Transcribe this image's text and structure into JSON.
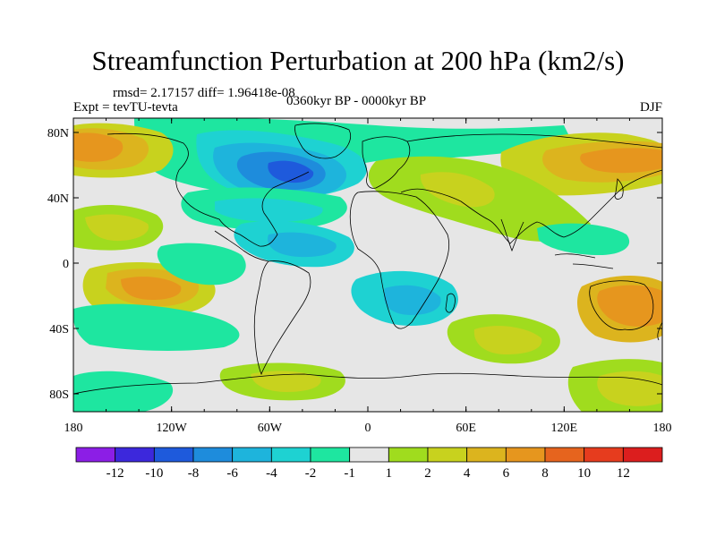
{
  "title": "Streamfunction Perturbation at 200 hPa (km2/s)",
  "stats_line": "rmsd= 2.17157 diff= 1.96418e-08",
  "experiment_line": "Expt = tevTU-tevta",
  "period_line": "0360kyr BP - 0000kyr BP",
  "season": "DJF",
  "lat_ticks": [
    "80N",
    "40N",
    "0",
    "40S",
    "80S"
  ],
  "lon_ticks": [
    "180",
    "120W",
    "60W",
    "0",
    "60E",
    "120E",
    "180"
  ],
  "colorbar": {
    "labels": [
      "-12",
      "-10",
      "-8",
      "-6",
      "-4",
      "-2",
      "-1",
      "1",
      "2",
      "4",
      "6",
      "8",
      "10",
      "12"
    ],
    "colors": [
      "#8c1ee6",
      "#3c28dc",
      "#1e5adc",
      "#1e8cdc",
      "#1eb4dc",
      "#1ed2d2",
      "#1ee6a0",
      "#e6e6e6",
      "#a0dc1e",
      "#c8d21e",
      "#dcb41e",
      "#e6961e",
      "#e6641e",
      "#e63c1e",
      "#dc1e1e"
    ]
  },
  "colors": {
    "background": "#e6e6e6",
    "coast": "#000000"
  }
}
